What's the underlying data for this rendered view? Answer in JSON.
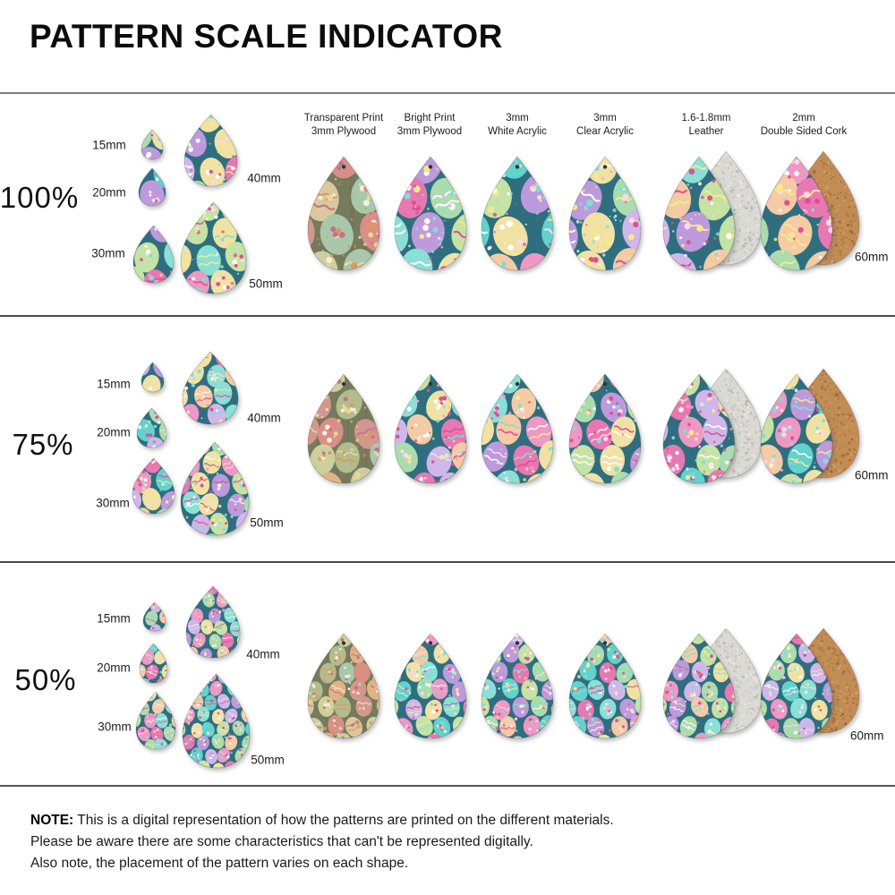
{
  "title": "PATTERN SCALE INDICATOR",
  "rows": [
    {
      "scale_label": "100%",
      "size_labels": [
        "15mm",
        "20mm",
        "30mm",
        "40mm",
        "50mm"
      ],
      "large_size_label": "60mm"
    },
    {
      "scale_label": "75%",
      "size_labels": [
        "15mm",
        "20mm",
        "30mm",
        "40mm",
        "50mm"
      ],
      "large_size_label": "60mm"
    },
    {
      "scale_label": "50%",
      "size_labels": [
        "15mm",
        "20mm",
        "30mm",
        "40mm",
        "50mm"
      ],
      "large_size_label": "60mm"
    }
  ],
  "materials": [
    {
      "line1": "Transparent Print",
      "line2": "3mm Plywood",
      "material": "transparent-plywood"
    },
    {
      "line1": "Bright Print",
      "line2": "3mm Plywood",
      "material": "bright-plywood"
    },
    {
      "line1": "3mm",
      "line2": "White Acrylic",
      "material": "white-acrylic"
    },
    {
      "line1": "3mm",
      "line2": "Clear Acrylic",
      "material": "clear-acrylic"
    },
    {
      "line1": "1.6-1.8mm",
      "line2": "Leather",
      "material": "leather"
    },
    {
      "line1": "2mm",
      "line2": "Double Sided Cork",
      "material": "cork"
    }
  ],
  "note": {
    "label": "NOTE:",
    "lines": [
      "This is a digital representation of how the patterns are printed on the different materials.",
      "Please be aware there are some characteristics that can't be represented digitally.",
      "Also note, the placement of the pattern varies on each shape."
    ]
  },
  "colors": {
    "pattern_teal": "#2f6e7f",
    "transparent_olive": "#757b5c",
    "leather_gray": "#dad9d3",
    "cork_tan": "#c28c55",
    "bright_eggs": [
      "#62d2cd",
      "#8adfd6",
      "#ef97c5",
      "#e878b1",
      "#bd9adc",
      "#d0b6e9",
      "#abdcae",
      "#c4e3a4",
      "#f0e2a4",
      "#f4cba4"
    ],
    "bright_decor": [
      "#f3e98e",
      "#ffffff",
      "#e04f92",
      "#7ae0d8",
      "#fbd9ec"
    ],
    "bright_speckles": [
      "#ffffff",
      "#f3e98e",
      "#e04f92",
      "#f4a9cd",
      "#8adfd6"
    ],
    "muted_eggs": [
      "#d29790",
      "#b3bc8c",
      "#dbc89e",
      "#a9c7ab",
      "#d88e89",
      "#ccd09f",
      "#e2b287"
    ],
    "muted_decor": [
      "#e8da8e",
      "#f4eedd",
      "#c76f89",
      "#e2955f"
    ],
    "muted_speckles": [
      "#df9a6f",
      "#ead9a6",
      "#cc7a66",
      "#f4eedd"
    ],
    "leather_noise": [
      "#bcbbb2",
      "#f2f1ea",
      "#a8a79e"
    ],
    "cork_noise": [
      "#a2672f",
      "#dcab72",
      "#8d5a28"
    ]
  }
}
